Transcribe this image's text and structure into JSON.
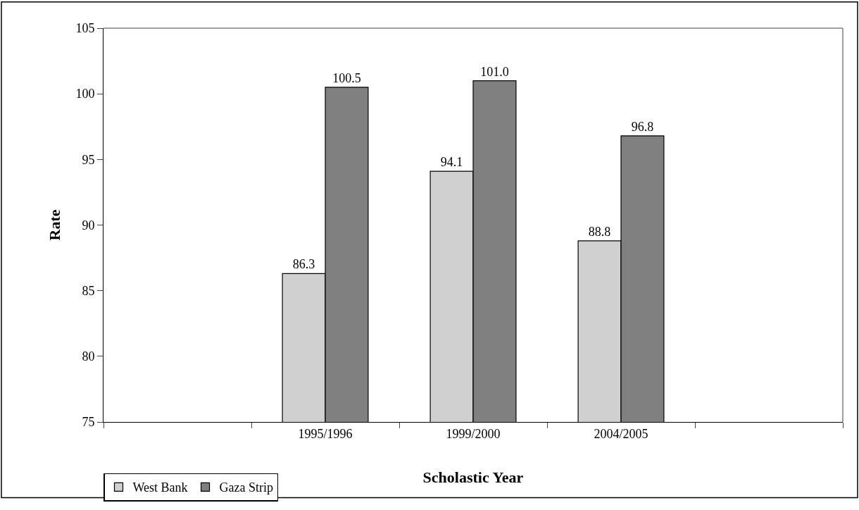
{
  "chart_data": {
    "type": "bar",
    "xlabel": "Scholastic Year",
    "ylabel": "Rate",
    "categories": [
      null,
      "1995/1996",
      "1999/2000",
      "2004/2005",
      null
    ],
    "series": [
      {
        "name": "West Bank",
        "color": "#d0d0d0",
        "values": [
          null,
          86.3,
          94.1,
          88.8,
          null
        ]
      },
      {
        "name": "Gaza Strip",
        "color": "#808080",
        "values": [
          null,
          100.5,
          101.0,
          96.8,
          null
        ]
      }
    ],
    "value_labels": [
      [
        null,
        "86.3",
        "94.1",
        "88.8",
        null
      ],
      [
        null,
        "100.5",
        "101.0",
        "96.8",
        null
      ]
    ],
    "ylim": [
      75,
      105
    ],
    "yticks": [
      75,
      80,
      85,
      90,
      95,
      100,
      105
    ],
    "legend": "bottom left"
  }
}
